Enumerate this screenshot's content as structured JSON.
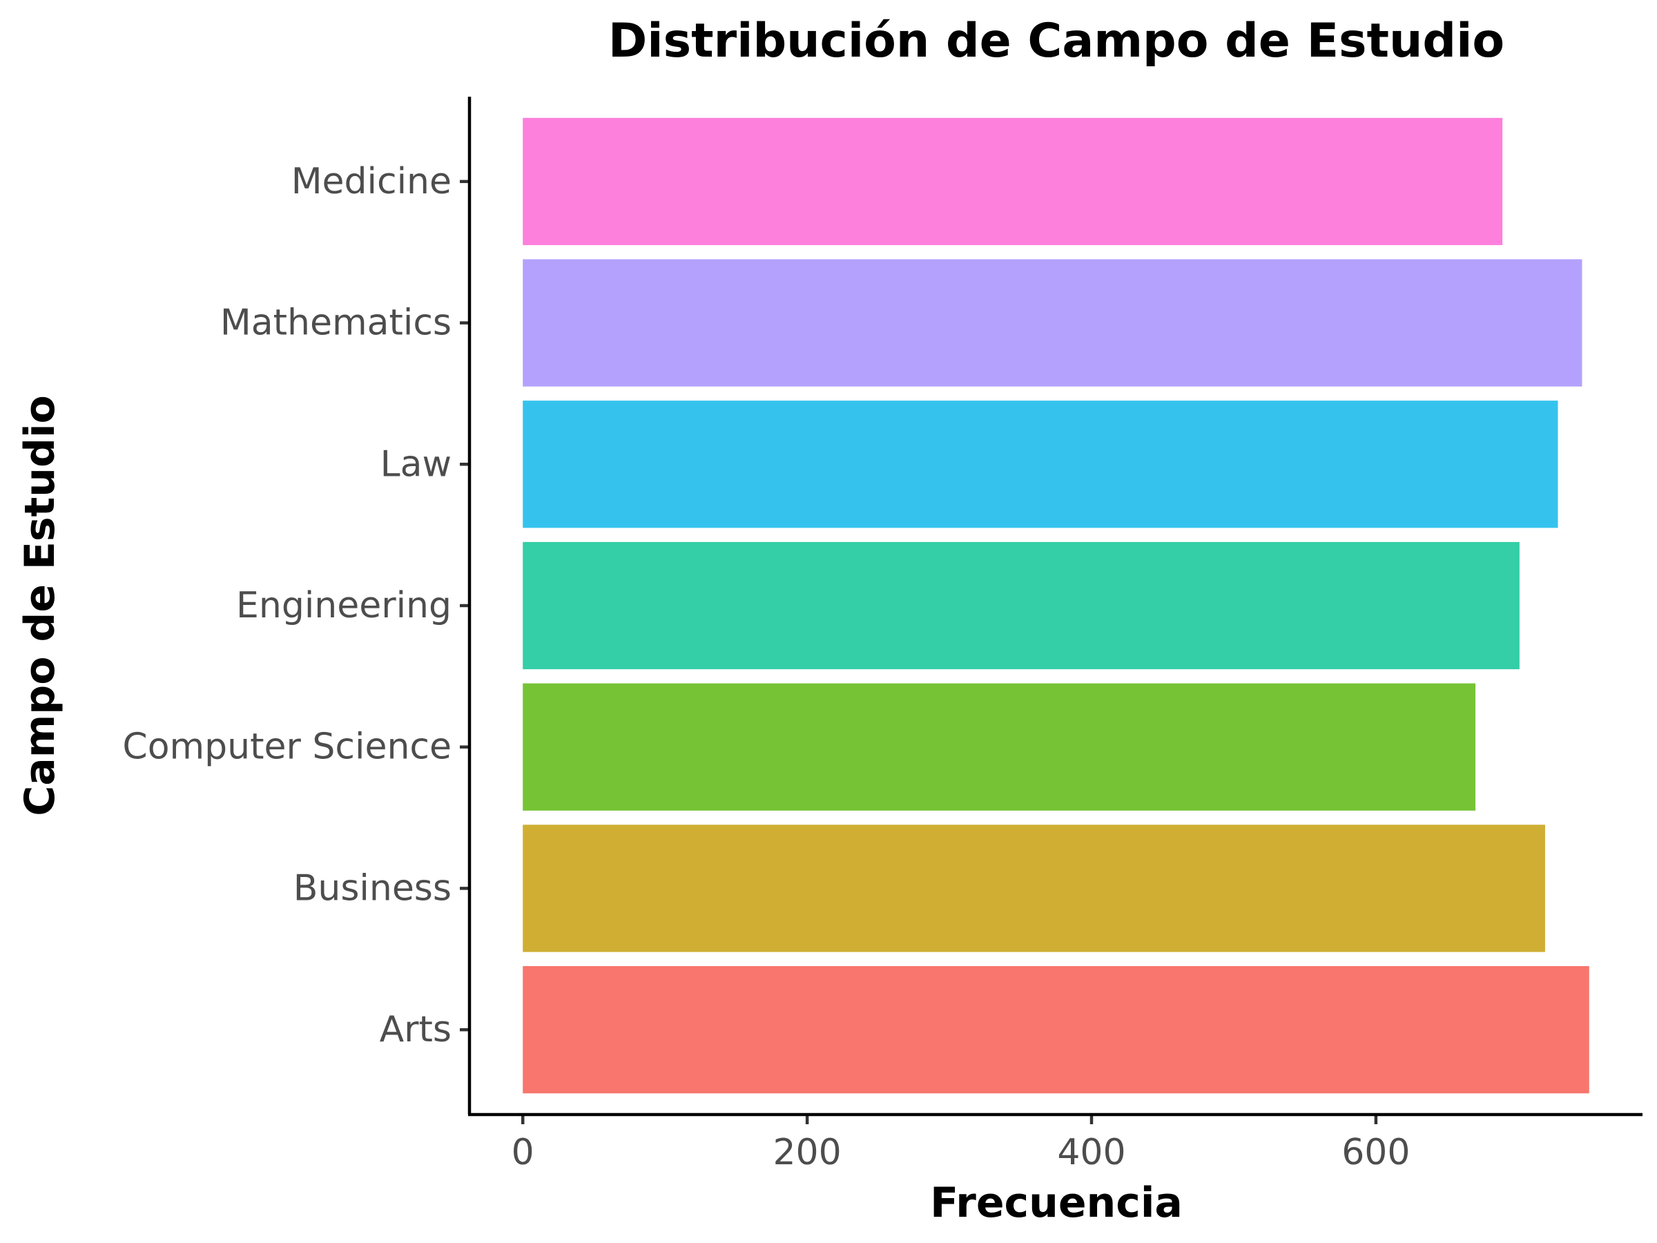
{
  "chart_data": {
    "type": "bar",
    "orientation": "horizontal",
    "title": "Distribución de Campo de Estudio",
    "xlabel": "Frecuencia",
    "ylabel": "Campo de Estudio",
    "categories": [
      "Arts",
      "Business",
      "Computer Science",
      "Engineering",
      "Law",
      "Mathematics",
      "Medicine"
    ],
    "values": [
      750,
      719,
      670,
      701,
      728,
      745,
      689
    ],
    "colors": [
      "#F8766D",
      "#CFAE33",
      "#76C335",
      "#34CEA7",
      "#35C3EE",
      "#B4A1FD",
      "#FD80DC"
    ],
    "xlim": [
      -37.5,
      787.5
    ],
    "xticks": [
      0,
      200,
      400,
      600
    ],
    "xtick_labels": [
      "0",
      "200",
      "400",
      "600"
    ],
    "grid": false,
    "legend": "none"
  }
}
